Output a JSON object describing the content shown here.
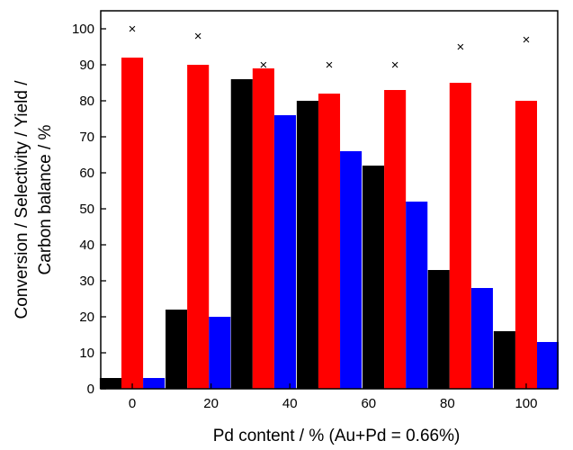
{
  "chart_data": {
    "type": "bar",
    "xlabel": "Pd content / % (Au+Pd = 0.66%)",
    "ylabel_lines": [
      "Conversion / Selectivity / Yield /",
      "Carbon balance / %"
    ],
    "xlim": [
      -8,
      108
    ],
    "ylim": [
      0,
      105
    ],
    "xticks": [
      0,
      20,
      40,
      60,
      80,
      100
    ],
    "yticks": [
      0,
      10,
      20,
      30,
      40,
      50,
      60,
      70,
      80,
      90,
      100
    ],
    "x": [
      0,
      16.7,
      33.3,
      50,
      66.7,
      83.3,
      100
    ],
    "bar_width": 5.5,
    "series": [
      {
        "color": "#000000",
        "values": [
          3,
          22,
          86,
          80,
          62,
          33,
          16
        ]
      },
      {
        "color": "#ff0000",
        "values": [
          92,
          90,
          89,
          82,
          83,
          85,
          80
        ]
      },
      {
        "color": "#0000ff",
        "values": [
          3,
          20,
          76,
          66,
          52,
          28,
          13
        ]
      }
    ],
    "markers": {
      "symbol": "×",
      "values": [
        100,
        98,
        90,
        90,
        90,
        95,
        97
      ]
    }
  }
}
